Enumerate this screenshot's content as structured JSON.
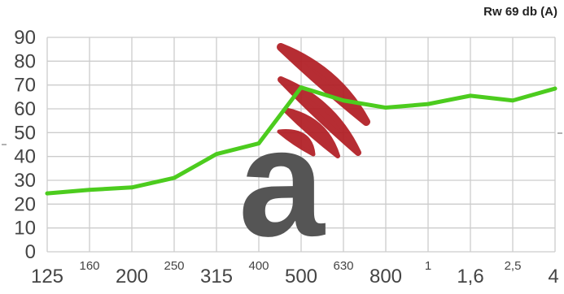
{
  "rating_label": "Rw 69 db (A)",
  "colors": {
    "line": "#4ccc1e",
    "grid": "#cccccc",
    "logo_dark": "#555555",
    "logo_red": "#b01c22"
  },
  "logo": {
    "letter": "a",
    "name": "logo-icon"
  },
  "chart_data": {
    "type": "line",
    "title": "",
    "xlabel": "",
    "ylabel": "",
    "ylim": [
      0,
      90
    ],
    "yticks": [
      "0",
      "10",
      "20",
      "30",
      "40",
      "50",
      "60",
      "70",
      "80",
      "90"
    ],
    "x_ticks": [
      {
        "label": "125",
        "level": "low"
      },
      {
        "label": "160",
        "level": "high"
      },
      {
        "label": "200",
        "level": "low"
      },
      {
        "label": "250",
        "level": "high"
      },
      {
        "label": "315",
        "level": "low"
      },
      {
        "label": "400",
        "level": "high"
      },
      {
        "label": "500",
        "level": "low"
      },
      {
        "label": "630",
        "level": "high"
      },
      {
        "label": "800",
        "level": "low"
      },
      {
        "label": "1",
        "level": "high"
      },
      {
        "label": "1,6",
        "level": "low"
      },
      {
        "label": "2,5",
        "level": "high"
      },
      {
        "label": "4",
        "level": "low"
      }
    ],
    "series": [
      {
        "values": [
          {
            "x": "125",
            "y": 24.5
          },
          {
            "x": "160",
            "y": 26
          },
          {
            "x": "200",
            "y": 27
          },
          {
            "x": "250",
            "y": 31
          },
          {
            "x": "315",
            "y": 41
          },
          {
            "x": "400",
            "y": 45.5
          },
          {
            "x": "500",
            "y": 69
          },
          {
            "x": "630",
            "y": 63.5
          },
          {
            "x": "800",
            "y": 60.5
          },
          {
            "x": "1",
            "y": 62
          },
          {
            "x": "1,6",
            "y": 65.5
          },
          {
            "x": "2,5",
            "y": 63.5
          },
          {
            "x": "4",
            "y": 68.5
          }
        ]
      }
    ],
    "grid": true
  }
}
